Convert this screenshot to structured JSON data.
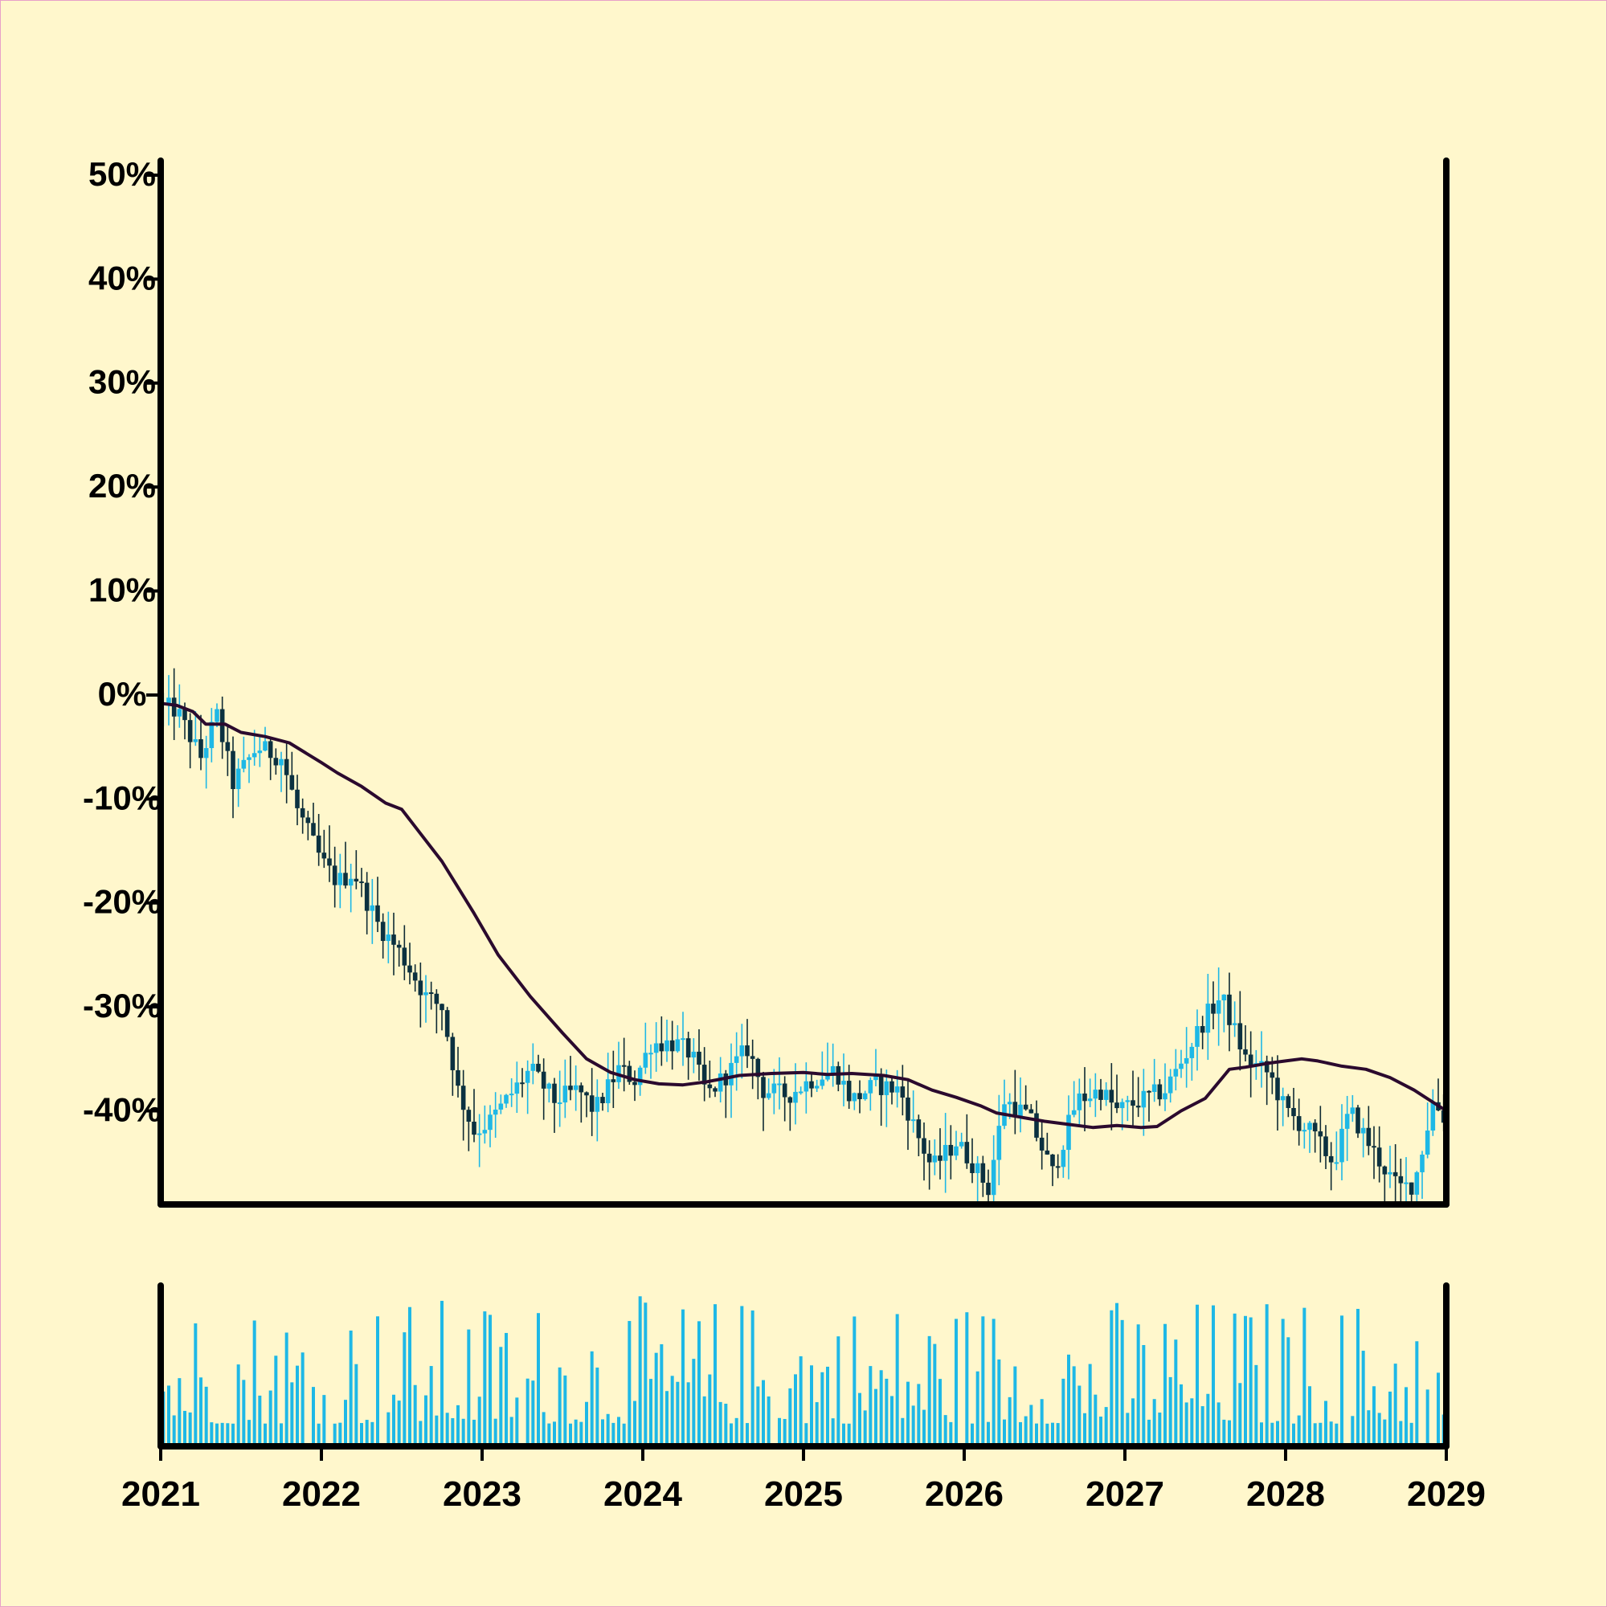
{
  "chart_data": {
    "type": "candlestick",
    "title": "",
    "xlabel": "",
    "ylabel": "",
    "x_ticks": [
      "2021",
      "2022",
      "2023",
      "2024",
      "2025",
      "2026",
      "2027",
      "2028",
      "2029"
    ],
    "y_ticks": [
      "50%",
      "40%",
      "30%",
      "20%",
      "10%",
      "0%",
      "-10%",
      "-20%",
      "-30%",
      "-40%"
    ],
    "y_tick_values": [
      50,
      40,
      30,
      20,
      10,
      0,
      -10,
      -20,
      -30,
      -40
    ],
    "ylim": [
      -49,
      51
    ],
    "xlim": [
      2021.0,
      2029.0
    ],
    "grid": false,
    "legend": "none",
    "price_trend": [
      [
        2021.0,
        -1.0
      ],
      [
        2021.1,
        -1.5
      ],
      [
        2021.25,
        -6.0
      ],
      [
        2021.35,
        -2.0
      ],
      [
        2021.45,
        -8.5
      ],
      [
        2021.6,
        -5.0
      ],
      [
        2021.75,
        -6.0
      ],
      [
        2021.85,
        -11.0
      ],
      [
        2022.0,
        -16.0
      ],
      [
        2022.1,
        -18.0
      ],
      [
        2022.2,
        -17.0
      ],
      [
        2022.35,
        -22.0
      ],
      [
        2022.5,
        -25.0
      ],
      [
        2022.65,
        -29.0
      ],
      [
        2022.75,
        -30.0
      ],
      [
        2022.85,
        -38.0
      ],
      [
        2022.95,
        -42.0
      ],
      [
        2023.05,
        -41.0
      ],
      [
        2023.15,
        -39.0
      ],
      [
        2023.3,
        -36.0
      ],
      [
        2023.45,
        -39.0
      ],
      [
        2023.6,
        -38.0
      ],
      [
        2023.7,
        -40.0
      ],
      [
        2023.85,
        -36.0
      ],
      [
        2023.95,
        -37.0
      ],
      [
        2024.05,
        -33.5
      ],
      [
        2024.2,
        -33.5
      ],
      [
        2024.3,
        -34.5
      ],
      [
        2024.4,
        -38.5
      ],
      [
        2024.55,
        -36.0
      ],
      [
        2024.65,
        -34.0
      ],
      [
        2024.75,
        -38.0
      ],
      [
        2024.9,
        -38.5
      ],
      [
        2025.05,
        -37.0
      ],
      [
        2025.2,
        -36.0
      ],
      [
        2025.3,
        -39.0
      ],
      [
        2025.45,
        -37.5
      ],
      [
        2025.6,
        -38.0
      ],
      [
        2025.7,
        -42.0
      ],
      [
        2025.8,
        -45.5
      ],
      [
        2025.95,
        -43.0
      ],
      [
        2026.05,
        -45.0
      ],
      [
        2026.15,
        -47.5
      ],
      [
        2026.25,
        -39.0
      ],
      [
        2026.4,
        -40.5
      ],
      [
        2026.55,
        -46.0
      ],
      [
        2026.7,
        -39.0
      ],
      [
        2026.85,
        -38.0
      ],
      [
        2026.95,
        -40.0
      ],
      [
        2027.1,
        -39.0
      ],
      [
        2027.25,
        -38.0
      ],
      [
        2027.4,
        -34.0
      ],
      [
        2027.5,
        -31.0
      ],
      [
        2027.6,
        -29.0
      ],
      [
        2027.75,
        -35.0
      ],
      [
        2027.9,
        -36.5
      ],
      [
        2028.0,
        -40.0
      ],
      [
        2028.15,
        -42.0
      ],
      [
        2028.3,
        -45.0
      ],
      [
        2028.4,
        -40.0
      ],
      [
        2028.55,
        -44.0
      ],
      [
        2028.7,
        -47.5
      ],
      [
        2028.8,
        -47.0
      ],
      [
        2028.92,
        -39.0
      ],
      [
        2029.0,
        -41.0
      ]
    ],
    "moving_average": [
      [
        2021.0,
        -0.8
      ],
      [
        2021.1,
        -1.0
      ],
      [
        2021.2,
        -1.6
      ],
      [
        2021.28,
        -2.8
      ],
      [
        2021.4,
        -2.8
      ],
      [
        2021.5,
        -3.6
      ],
      [
        2021.65,
        -4.0
      ],
      [
        2021.8,
        -4.6
      ],
      [
        2022.0,
        -6.5
      ],
      [
        2022.1,
        -7.5
      ],
      [
        2022.25,
        -8.8
      ],
      [
        2022.4,
        -10.4
      ],
      [
        2022.5,
        -11.0
      ],
      [
        2022.6,
        -13.0
      ],
      [
        2022.75,
        -16.0
      ],
      [
        2022.85,
        -18.5
      ],
      [
        2022.95,
        -21.0
      ],
      [
        2023.1,
        -25.0
      ],
      [
        2023.3,
        -29.0
      ],
      [
        2023.5,
        -32.5
      ],
      [
        2023.65,
        -35.0
      ],
      [
        2023.8,
        -36.3
      ],
      [
        2023.95,
        -37.0
      ],
      [
        2024.1,
        -37.4
      ],
      [
        2024.25,
        -37.5
      ],
      [
        2024.4,
        -37.2
      ],
      [
        2024.6,
        -36.6
      ],
      [
        2024.8,
        -36.4
      ],
      [
        2025.0,
        -36.3
      ],
      [
        2025.15,
        -36.5
      ],
      [
        2025.3,
        -36.4
      ],
      [
        2025.5,
        -36.6
      ],
      [
        2025.65,
        -37.0
      ],
      [
        2025.8,
        -38.0
      ],
      [
        2025.95,
        -38.7
      ],
      [
        2026.1,
        -39.5
      ],
      [
        2026.2,
        -40.2
      ],
      [
        2026.35,
        -40.6
      ],
      [
        2026.5,
        -41.0
      ],
      [
        2026.65,
        -41.3
      ],
      [
        2026.8,
        -41.6
      ],
      [
        2026.95,
        -41.4
      ],
      [
        2027.1,
        -41.6
      ],
      [
        2027.2,
        -41.5
      ],
      [
        2027.35,
        -40.0
      ],
      [
        2027.5,
        -38.8
      ],
      [
        2027.65,
        -36.0
      ],
      [
        2027.75,
        -35.8
      ],
      [
        2027.9,
        -35.4
      ],
      [
        2028.0,
        -35.2
      ],
      [
        2028.1,
        -35.0
      ],
      [
        2028.2,
        -35.2
      ],
      [
        2028.35,
        -35.7
      ],
      [
        2028.5,
        -36.0
      ],
      [
        2028.65,
        -36.8
      ],
      [
        2028.8,
        -38.0
      ],
      [
        2028.92,
        -39.2
      ],
      [
        2029.0,
        -40.0
      ]
    ],
    "volume_relative": [
      0.15,
      1.0
    ],
    "colors": {
      "background": "#FFF7CC",
      "border": "#E8A0C8",
      "axis": "#000000",
      "candle_up": "#1EB8E6",
      "candle_down": "#0B3140",
      "wick": "#0F2A33",
      "moving_average": "#2B0A2E",
      "volume": "#1EB8E6"
    }
  }
}
